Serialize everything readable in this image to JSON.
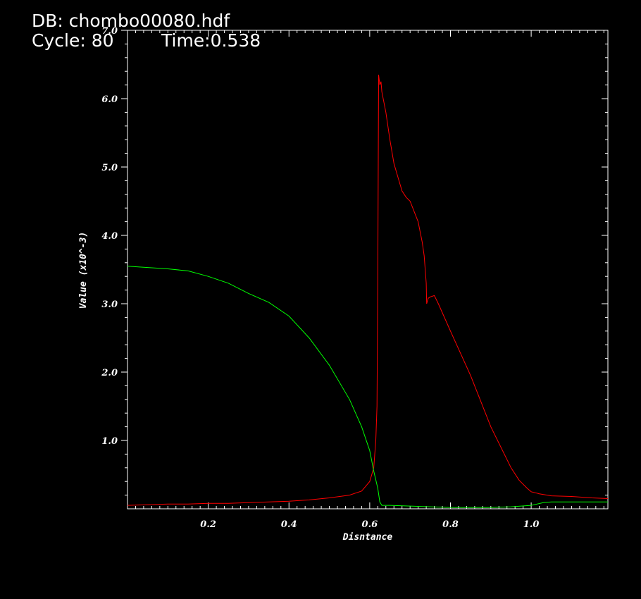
{
  "header": {
    "db_label": "DB: chombo00080.hdf",
    "cycle_label": "Cycle: 80",
    "time_label": "Time:0.538"
  },
  "colors": {
    "background": "#000000",
    "axes": "#ffffff",
    "series_red": "#ff0000",
    "series_green": "#00ff00"
  },
  "chart_data": {
    "type": "line",
    "title": "",
    "xlabel": "Disntance",
    "ylabel": "Value (x10^-3)",
    "xlim": [
      0.0,
      1.19
    ],
    "ylim": [
      0.0,
      7.0
    ],
    "x_ticks": [
      {
        "value": 0.2,
        "label": "0.2"
      },
      {
        "value": 0.4,
        "label": "0.4"
      },
      {
        "value": 0.6,
        "label": "0.6"
      },
      {
        "value": 0.8,
        "label": "0.8"
      },
      {
        "value": 1.0,
        "label": "1.0"
      }
    ],
    "y_ticks": [
      {
        "value": 1.0,
        "label": "1.0"
      },
      {
        "value": 2.0,
        "label": "2.0"
      },
      {
        "value": 3.0,
        "label": "3.0"
      },
      {
        "value": 4.0,
        "label": "4.0"
      },
      {
        "value": 5.0,
        "label": "5.0"
      },
      {
        "value": 6.0,
        "label": "6.0"
      },
      {
        "value": 7.0,
        "label": "7.0"
      }
    ],
    "grid": false,
    "legend": "none",
    "series": [
      {
        "color": "#ff0000",
        "x": [
          0.0,
          0.05,
          0.1,
          0.15,
          0.2,
          0.25,
          0.3,
          0.35,
          0.4,
          0.45,
          0.5,
          0.55,
          0.58,
          0.6,
          0.61,
          0.615,
          0.618,
          0.62,
          0.622,
          0.625,
          0.628,
          0.63,
          0.64,
          0.65,
          0.66,
          0.67,
          0.68,
          0.69,
          0.7,
          0.71,
          0.72,
          0.73,
          0.735,
          0.74,
          0.741,
          0.745,
          0.75,
          0.76,
          0.77,
          0.8,
          0.85,
          0.9,
          0.95,
          0.97,
          0.99,
          1.0,
          1.02,
          1.05,
          1.1,
          1.15,
          1.19
        ],
        "y": [
          0.05,
          0.06,
          0.07,
          0.07,
          0.08,
          0.08,
          0.09,
          0.1,
          0.11,
          0.13,
          0.16,
          0.2,
          0.26,
          0.4,
          0.6,
          1.0,
          1.5,
          3.3,
          6.35,
          6.2,
          6.25,
          6.1,
          5.8,
          5.4,
          5.05,
          4.85,
          4.65,
          4.56,
          4.5,
          4.35,
          4.2,
          3.9,
          3.7,
          3.3,
          3.0,
          3.08,
          3.1,
          3.12,
          3.0,
          2.6,
          1.95,
          1.2,
          0.6,
          0.42,
          0.3,
          0.25,
          0.22,
          0.19,
          0.18,
          0.16,
          0.15
        ]
      },
      {
        "color": "#00ff00",
        "x": [
          0.0,
          0.05,
          0.1,
          0.15,
          0.2,
          0.25,
          0.3,
          0.35,
          0.4,
          0.45,
          0.5,
          0.55,
          0.58,
          0.6,
          0.61,
          0.62,
          0.625,
          0.63,
          0.65,
          0.7,
          0.75,
          0.8,
          0.85,
          0.9,
          0.95,
          1.0,
          1.03,
          1.05,
          1.1,
          1.15,
          1.19
        ],
        "y": [
          3.55,
          3.53,
          3.51,
          3.48,
          3.4,
          3.3,
          3.15,
          3.02,
          2.82,
          2.5,
          2.1,
          1.6,
          1.2,
          0.85,
          0.55,
          0.3,
          0.1,
          0.05,
          0.05,
          0.04,
          0.03,
          0.02,
          0.02,
          0.02,
          0.03,
          0.05,
          0.09,
          0.1,
          0.1,
          0.1,
          0.1
        ]
      }
    ]
  }
}
